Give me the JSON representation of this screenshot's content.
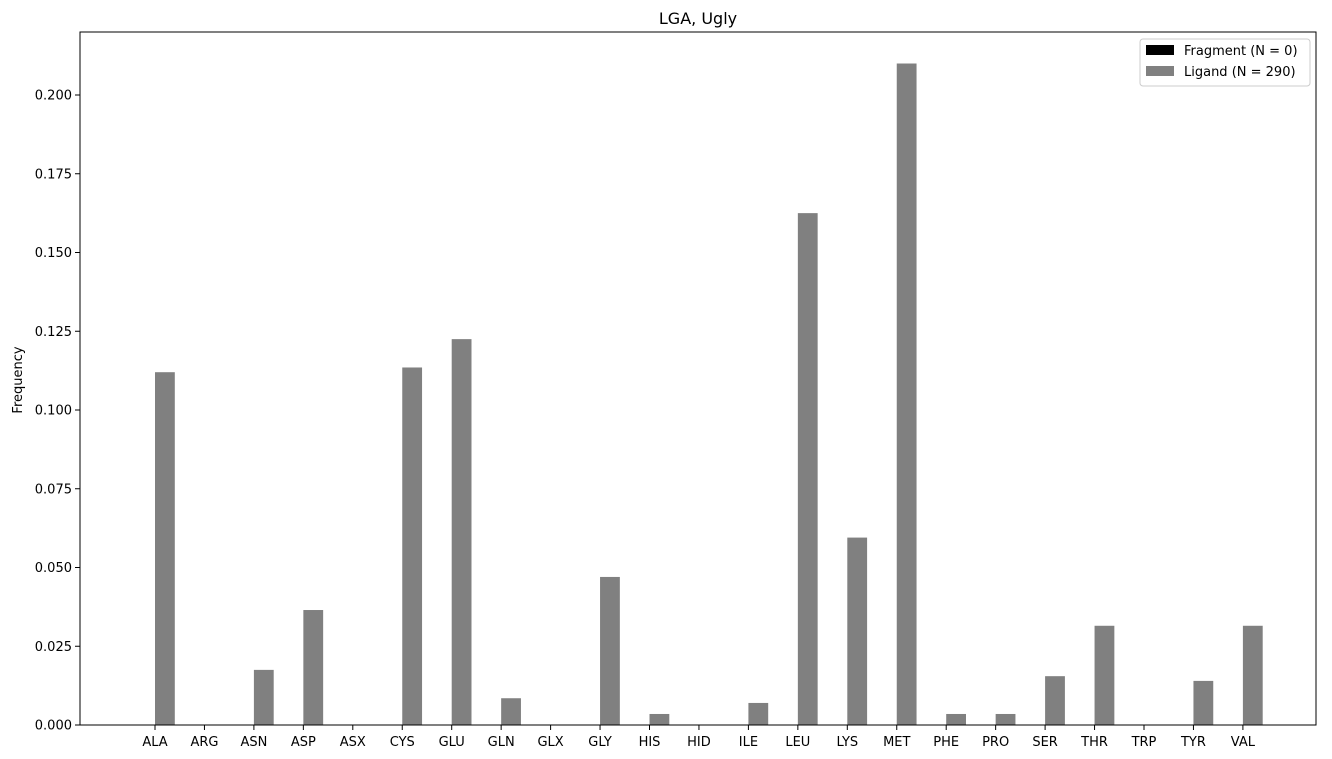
{
  "chart_data": {
    "type": "bar",
    "title": "LGA, Ugly",
    "xlabel": "",
    "ylabel": "Frequency",
    "ylim": [
      0,
      0.22
    ],
    "yticks": [
      "0.000",
      "0.025",
      "0.050",
      "0.075",
      "0.100",
      "0.125",
      "0.150",
      "0.175",
      "0.200"
    ],
    "categories": [
      "ALA",
      "ARG",
      "ASN",
      "ASP",
      "ASX",
      "CYS",
      "GLU",
      "GLN",
      "GLX",
      "GLY",
      "HIS",
      "HID",
      "ILE",
      "LEU",
      "LYS",
      "MET",
      "PHE",
      "PRO",
      "SER",
      "THR",
      "TRP",
      "TYR",
      "VAL"
    ],
    "series": [
      {
        "name": "Fragment (N = 0)",
        "color": "#000000",
        "values": [
          0,
          0,
          0,
          0,
          0,
          0,
          0,
          0,
          0,
          0,
          0,
          0,
          0,
          0,
          0,
          0,
          0,
          0,
          0,
          0,
          0,
          0,
          0
        ]
      },
      {
        "name": "Ligand (N = 290)",
        "color": "#808080",
        "values": [
          0.112,
          0,
          0.0175,
          0.0365,
          0,
          0.1135,
          0.1225,
          0.0085,
          0,
          0.047,
          0.0035,
          0,
          0.007,
          0.1625,
          0.0595,
          0.21,
          0.0035,
          0.0035,
          0.0155,
          0.0315,
          0,
          0.014,
          0.0315
        ]
      }
    ],
    "grid": false,
    "legend_position": "top-right"
  }
}
